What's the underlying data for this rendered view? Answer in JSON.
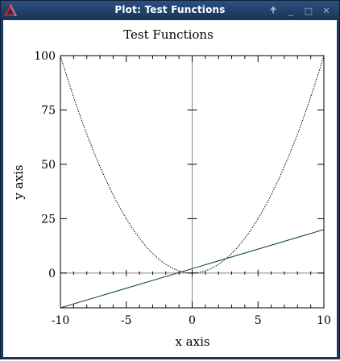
{
  "window": {
    "title": "Plot: Test Functions",
    "controls": {
      "pin": "🠉",
      "minimize": "_",
      "maximize": "□",
      "close": "✕"
    },
    "accent_color": "#1e3a5f",
    "app_icon": "triangle-app-icon"
  },
  "chart_data": {
    "type": "line",
    "title": "Test Functions",
    "xlabel": "x axis",
    "ylabel": "y axis",
    "xlim": [
      -10,
      10
    ],
    "ylim": [
      -16,
      100
    ],
    "x_ticks": [
      -10,
      -5,
      0,
      5,
      10
    ],
    "x_tick_labels": [
      "-10",
      "-5",
      "0",
      "5",
      "10"
    ],
    "y_ticks": [
      0,
      25,
      50,
      75,
      100
    ],
    "y_tick_labels": [
      "0",
      "25",
      "50",
      "75",
      "100"
    ],
    "grid": false,
    "zero_axes": true,
    "series": [
      {
        "function": "x^2",
        "style": "dotted",
        "color": "#000000",
        "x": [
          -10,
          -9,
          -8,
          -7,
          -6,
          -5,
          -4,
          -3,
          -2,
          -1,
          0,
          1,
          2,
          3,
          4,
          5,
          6,
          7,
          8,
          9,
          10
        ],
        "values": [
          100,
          81,
          64,
          49,
          36,
          25,
          16,
          9,
          4,
          1,
          0,
          1,
          4,
          9,
          16,
          25,
          36,
          49,
          64,
          81,
          100
        ]
      },
      {
        "function": "2x",
        "style": "solid",
        "color": "#0d3b55",
        "x": [
          -10,
          10
        ],
        "values": [
          -20,
          20
        ]
      }
    ]
  }
}
